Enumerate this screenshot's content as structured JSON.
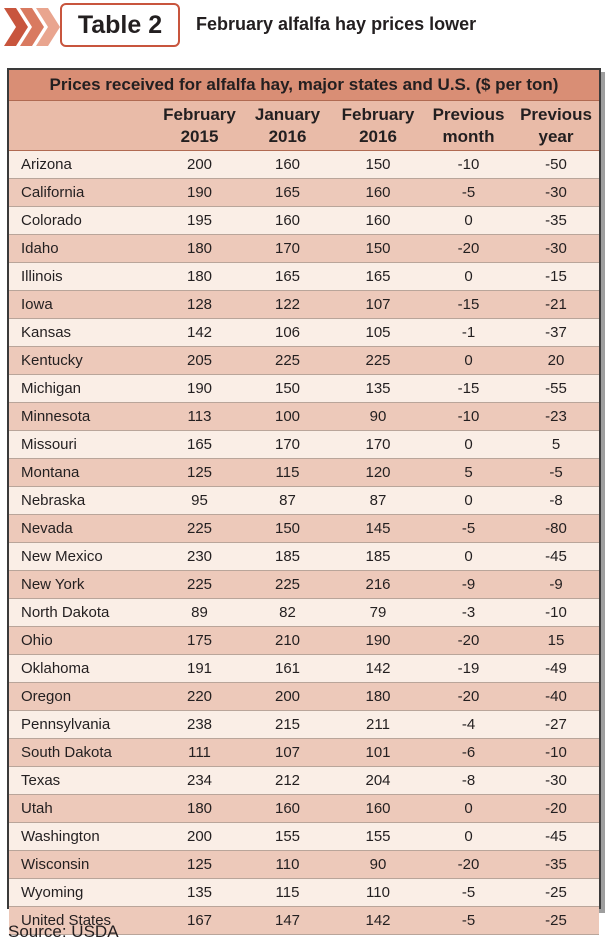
{
  "header": {
    "tag": "Table 2",
    "title": "February alfalfa hay prices lower"
  },
  "colors": {
    "accent": "#c8553d",
    "caption_bg": "#d98e75",
    "header_bg": "#e9bba8",
    "row_light": "#faeee6",
    "row_dark": "#edc9ba"
  },
  "table": {
    "caption": "Prices received for alfalfa hay, major states and U.S. ($ per ton)",
    "columns": [
      "",
      "February\n2015",
      "January\n2016",
      "February\n2016",
      "Previous\nmonth",
      "Previous\nyear"
    ],
    "rows": [
      [
        "Arizona",
        "200",
        "160",
        "150",
        "-10",
        "-50"
      ],
      [
        "California",
        "190",
        "165",
        "160",
        "-5",
        "-30"
      ],
      [
        "Colorado",
        "195",
        "160",
        "160",
        "0",
        "-35"
      ],
      [
        "Idaho",
        "180",
        "170",
        "150",
        "-20",
        "-30"
      ],
      [
        "Illinois",
        "180",
        "165",
        "165",
        "0",
        "-15"
      ],
      [
        "Iowa",
        "128",
        "122",
        "107",
        "-15",
        "-21"
      ],
      [
        "Kansas",
        "142",
        "106",
        "105",
        "-1",
        "-37"
      ],
      [
        "Kentucky",
        "205",
        "225",
        "225",
        "0",
        "20"
      ],
      [
        "Michigan",
        "190",
        "150",
        "135",
        "-15",
        "-55"
      ],
      [
        "Minnesota",
        "113",
        "100",
        "90",
        "-10",
        "-23"
      ],
      [
        "Missouri",
        "165",
        "170",
        "170",
        "0",
        "5"
      ],
      [
        "Montana",
        "125",
        "115",
        "120",
        "5",
        "-5"
      ],
      [
        "Nebraska",
        "95",
        "87",
        "87",
        "0",
        "-8"
      ],
      [
        "Nevada",
        "225",
        "150",
        "145",
        "-5",
        "-80"
      ],
      [
        "New Mexico",
        "230",
        "185",
        "185",
        "0",
        "-45"
      ],
      [
        "New York",
        "225",
        "225",
        "216",
        "-9",
        "-9"
      ],
      [
        "North Dakota",
        "89",
        "82",
        "79",
        "-3",
        "-10"
      ],
      [
        "Ohio",
        "175",
        "210",
        "190",
        "-20",
        "15"
      ],
      [
        "Oklahoma",
        "191",
        "161",
        "142",
        "-19",
        "-49"
      ],
      [
        "Oregon",
        "220",
        "200",
        "180",
        "-20",
        "-40"
      ],
      [
        "Pennsylvania",
        "238",
        "215",
        "211",
        "-4",
        "-27"
      ],
      [
        "South Dakota",
        "111",
        "107",
        "101",
        "-6",
        "-10"
      ],
      [
        "Texas",
        "234",
        "212",
        "204",
        "-8",
        "-30"
      ],
      [
        "Utah",
        "180",
        "160",
        "160",
        "0",
        "-20"
      ],
      [
        "Washington",
        "200",
        "155",
        "155",
        "0",
        "-45"
      ],
      [
        "Wisconsin",
        "125",
        "110",
        "90",
        "-20",
        "-35"
      ],
      [
        "Wyoming",
        "135",
        "115",
        "110",
        "-5",
        "-25"
      ],
      [
        "United States",
        "167",
        "147",
        "142",
        "-5",
        "-25"
      ]
    ]
  },
  "source": "Source: USDA"
}
